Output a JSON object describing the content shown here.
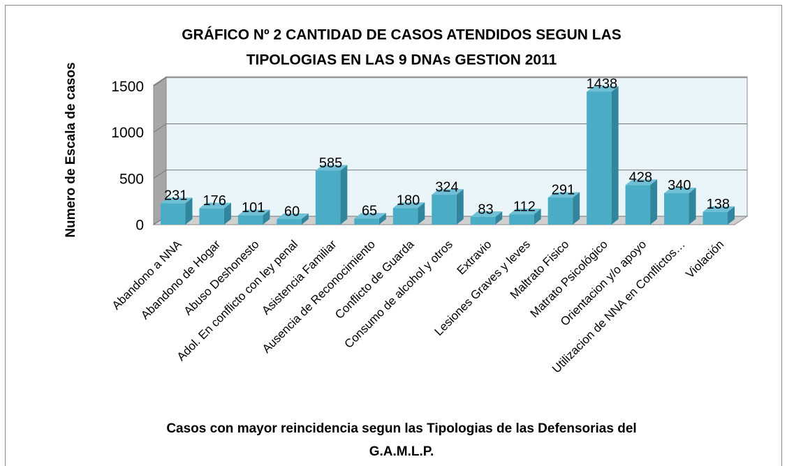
{
  "chart_data": {
    "type": "bar3d",
    "title": [
      "GRÁFICO  Nº 2 CANTIDAD DE CASOS ATENDIDOS SEGUN LAS",
      "TIPOLOGIAS  EN LAS 9 DNAs  GESTION 2011"
    ],
    "ylabel": "Numero de Escala de casos",
    "xlabel": [
      "Casos con mayor reincidencia segun las Tipologias de las Defensorias del",
      "G.A.M.L.P."
    ],
    "categories": [
      "Abandono a NNA",
      "Abandono de Hogar",
      "Abuso Deshonesto",
      "Adol. En conflicto con ley penal",
      "Asistencia Familiar",
      "Ausencia de Reconocimiento",
      "Conflicto de Guarda",
      "Consumo de alcohol y otros",
      "Extravio",
      "Lesiones Graves y leves",
      "Maltrato Fisico",
      "Matrato Psicológico",
      "Orientacion y/o apoyo",
      "Utilizacion de NNA en Conflictos…",
      "Violación"
    ],
    "values": [
      231,
      176,
      101,
      60,
      585,
      65,
      180,
      324,
      83,
      112,
      291,
      1438,
      428,
      340,
      138
    ],
    "color": "#4bacc6",
    "ylim": [
      0,
      1600
    ],
    "yticks": [
      0,
      500,
      1000,
      1500
    ],
    "grid": true
  }
}
